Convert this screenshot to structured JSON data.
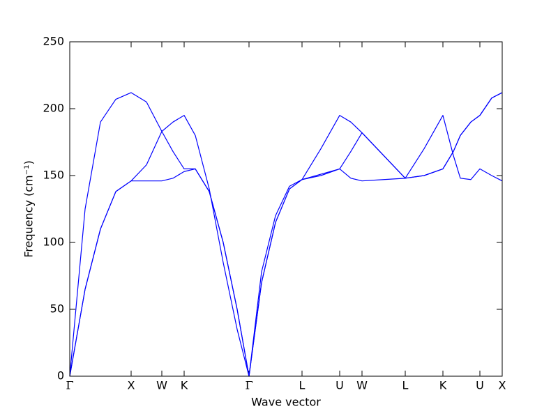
{
  "chart_data": {
    "type": "line",
    "xlabel": "Wave vector",
    "ylabel": "Frequency (cm⁻¹)",
    "x": [
      0,
      0.22,
      0.44,
      0.66,
      0.88,
      1.1,
      1.32,
      1.48,
      1.64,
      1.8,
      2.0,
      2.2,
      2.4,
      2.57,
      2.75,
      2.95,
      3.15,
      3.33,
      3.6,
      3.87,
      4.03,
      4.19,
      4.5,
      4.81,
      5.08,
      5.35,
      5.5,
      5.6,
      5.75,
      5.88,
      6.05,
      6.2
    ],
    "series": [
      {
        "color": "#0000ff",
        "values": [
          0,
          65,
          110,
          138,
          146,
          146,
          146,
          148,
          153,
          155,
          138,
          100,
          50,
          0,
          70,
          115,
          140,
          147,
          150,
          155,
          148,
          146,
          147,
          148,
          150,
          155,
          168,
          180,
          190,
          195,
          208,
          212
        ]
      },
      {
        "color": "#0000ff",
        "values": [
          0,
          65,
          110,
          138,
          146,
          158,
          183,
          168,
          155,
          155,
          138,
          100,
          50,
          0,
          70,
          115,
          140,
          147,
          151,
          155,
          168,
          182,
          165,
          148,
          150,
          155,
          168,
          180,
          190,
          195,
          208,
          212
        ]
      },
      {
        "color": "#0000ff",
        "values": [
          0,
          125,
          190,
          207,
          212,
          205,
          183,
          190,
          195,
          180,
          140,
          85,
          35,
          0,
          78,
          120,
          142,
          147,
          170,
          195,
          190,
          182,
          165,
          148,
          170,
          195,
          165,
          148,
          147,
          155,
          150,
          146
        ]
      }
    ],
    "xlim": [
      0,
      6.2
    ],
    "xticks": [
      {
        "value": 0,
        "label": "Γ"
      },
      {
        "value": 0.88,
        "label": "X"
      },
      {
        "value": 1.32,
        "label": "W"
      },
      {
        "value": 1.64,
        "label": "K"
      },
      {
        "value": 2.57,
        "label": "Γ"
      },
      {
        "value": 3.33,
        "label": "L"
      },
      {
        "value": 3.87,
        "label": "U"
      },
      {
        "value": 4.19,
        "label": "W"
      },
      {
        "value": 4.81,
        "label": "L"
      },
      {
        "value": 5.35,
        "label": "K"
      },
      {
        "value": 5.88,
        "label": "U"
      },
      {
        "value": 6.2,
        "label": "X"
      }
    ],
    "ylim": [
      0,
      250
    ],
    "yticks": [
      0,
      50,
      100,
      150,
      200,
      250
    ]
  }
}
